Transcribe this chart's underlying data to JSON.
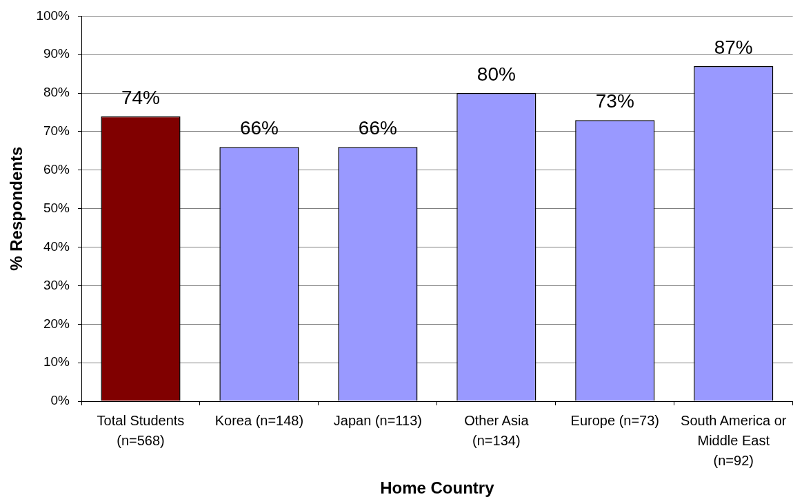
{
  "chart_data": {
    "type": "bar",
    "xlabel": "Home Country",
    "ylabel": "% Respondents",
    "categories": [
      "Total Students (n=568)",
      "Korea (n=148)",
      "Japan (n=113)",
      "Other Asia (n=134)",
      "Europe (n=73)",
      "South America or Middle East (n=92)"
    ],
    "values": [
      74,
      66,
      66,
      80,
      73,
      87
    ],
    "colors": [
      "#800000",
      "#9999ff",
      "#9999ff",
      "#9999ff",
      "#9999ff",
      "#9999ff"
    ],
    "value_labels": [
      "74%",
      "66%",
      "66%",
      "80%",
      "73%",
      "87%"
    ],
    "ylim": [
      0,
      100
    ],
    "yticks": [
      {
        "value": 0,
        "label": "0%"
      },
      {
        "value": 10,
        "label": "10%"
      },
      {
        "value": 20,
        "label": "20%"
      },
      {
        "value": 30,
        "label": "30%"
      },
      {
        "value": 40,
        "label": "40%"
      },
      {
        "value": 50,
        "label": "50%"
      },
      {
        "value": 60,
        "label": "60%"
      },
      {
        "value": 70,
        "label": "70%"
      },
      {
        "value": 80,
        "label": "80%"
      },
      {
        "value": 90,
        "label": "90%"
      },
      {
        "value": 100,
        "label": "100%"
      }
    ],
    "grid": "y"
  }
}
